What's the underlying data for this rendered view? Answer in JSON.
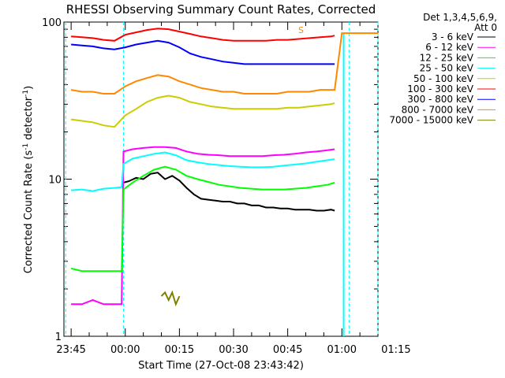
{
  "chart_data": {
    "type": "line",
    "title": "RHESSI Observing Summary Count Rates, Corrected",
    "xlabel": "Start Time (27-Oct-08 23:43:42)",
    "ylabel": "Corrected Count Rate (s",
    "ylabel_sup": "-1",
    "ylabel_mid": " detector",
    "ylabel_end": ")",
    "y_scale": "log",
    "ylim": [
      1,
      100
    ],
    "y_ticks": [
      {
        "value": 1,
        "label": "1"
      },
      {
        "value": 10,
        "label": "10"
      },
      {
        "value": 100,
        "label": "100"
      }
    ],
    "xlim_minutes": [
      -2,
      85
    ],
    "x_ticks": [
      {
        "minute": 0,
        "label": "23:45"
      },
      {
        "minute": 15,
        "label": "00:00"
      },
      {
        "minute": 30,
        "label": "00:15"
      },
      {
        "minute": 45,
        "label": "00:30"
      },
      {
        "minute": 60,
        "label": "00:45"
      },
      {
        "minute": 75,
        "label": "01:00"
      },
      {
        "minute": 90,
        "label": "01:15"
      }
    ],
    "legend_header_1": "Det 1,3,4,5,6,9,",
    "legend_header_2": "Att 0",
    "legend_position": "right",
    "marker_label": "S",
    "marker_minute": 73,
    "series": [
      {
        "name": "3 - 6 keV",
        "color": "#000000",
        "points": [
          [
            14.5,
            9.5
          ],
          [
            16,
            9.7
          ],
          [
            18,
            10.2
          ],
          [
            20,
            10.0
          ],
          [
            22,
            10.8
          ],
          [
            24,
            11.0
          ],
          [
            26,
            10.0
          ],
          [
            28,
            10.5
          ],
          [
            30,
            9.8
          ],
          [
            32,
            8.8
          ],
          [
            34,
            8.0
          ],
          [
            36,
            7.5
          ],
          [
            38,
            7.4
          ],
          [
            40,
            7.3
          ],
          [
            42,
            7.2
          ],
          [
            44,
            7.2
          ],
          [
            46,
            7.0
          ],
          [
            48,
            7.0
          ],
          [
            50,
            6.8
          ],
          [
            52,
            6.8
          ],
          [
            54,
            6.6
          ],
          [
            56,
            6.6
          ],
          [
            58,
            6.5
          ],
          [
            60,
            6.5
          ],
          [
            62,
            6.4
          ],
          [
            64,
            6.4
          ],
          [
            66,
            6.4
          ],
          [
            68,
            6.3
          ],
          [
            70,
            6.3
          ],
          [
            72,
            6.4
          ],
          [
            73,
            6.3
          ]
        ]
      },
      {
        "name": "6 - 12 keV",
        "color": "#ff00ff",
        "points": [
          [
            0,
            1.6
          ],
          [
            3,
            1.6
          ],
          [
            6,
            1.7
          ],
          [
            9,
            1.6
          ],
          [
            12,
            1.6
          ],
          [
            14,
            1.6
          ],
          [
            14.5,
            15.0
          ],
          [
            17,
            15.5
          ],
          [
            20,
            15.8
          ],
          [
            23,
            16.0
          ],
          [
            26,
            16.0
          ],
          [
            29,
            15.8
          ],
          [
            32,
            15.0
          ],
          [
            35,
            14.5
          ],
          [
            38,
            14.3
          ],
          [
            41,
            14.2
          ],
          [
            44,
            14.0
          ],
          [
            47,
            14.0
          ],
          [
            50,
            14.0
          ],
          [
            53,
            14.0
          ],
          [
            56,
            14.2
          ],
          [
            59,
            14.3
          ],
          [
            62,
            14.5
          ],
          [
            65,
            14.8
          ],
          [
            68,
            15.0
          ],
          [
            71,
            15.3
          ],
          [
            73,
            15.5
          ]
        ]
      },
      {
        "name": "12 - 25 keV",
        "color": "#00ff00",
        "points": [
          [
            0,
            2.7
          ],
          [
            3,
            2.6
          ],
          [
            6,
            2.6
          ],
          [
            9,
            2.6
          ],
          [
            12,
            2.6
          ],
          [
            14,
            2.6
          ],
          [
            14.5,
            8.6
          ],
          [
            17,
            9.5
          ],
          [
            20,
            10.5
          ],
          [
            23,
            11.5
          ],
          [
            26,
            12.0
          ],
          [
            29,
            11.5
          ],
          [
            32,
            10.5
          ],
          [
            35,
            10.0
          ],
          [
            38,
            9.6
          ],
          [
            41,
            9.2
          ],
          [
            44,
            9.0
          ],
          [
            47,
            8.8
          ],
          [
            50,
            8.7
          ],
          [
            53,
            8.6
          ],
          [
            56,
            8.6
          ],
          [
            59,
            8.6
          ],
          [
            62,
            8.7
          ],
          [
            65,
            8.8
          ],
          [
            68,
            9.0
          ],
          [
            71,
            9.2
          ],
          [
            73,
            9.5
          ]
        ]
      },
      {
        "name": "25 - 50 keV",
        "color": "#00ffff",
        "points": [
          [
            0,
            8.5
          ],
          [
            3,
            8.6
          ],
          [
            6,
            8.4
          ],
          [
            9,
            8.7
          ],
          [
            12,
            8.8
          ],
          [
            14,
            8.9
          ],
          [
            14.5,
            12.5
          ],
          [
            17,
            13.5
          ],
          [
            20,
            14.0
          ],
          [
            23,
            14.5
          ],
          [
            26,
            14.8
          ],
          [
            29,
            14.2
          ],
          [
            32,
            13.2
          ],
          [
            35,
            12.8
          ],
          [
            38,
            12.5
          ],
          [
            41,
            12.3
          ],
          [
            44,
            12.1
          ],
          [
            47,
            12.0
          ],
          [
            50,
            11.9
          ],
          [
            53,
            11.9
          ],
          [
            56,
            12.0
          ],
          [
            59,
            12.2
          ],
          [
            62,
            12.4
          ],
          [
            65,
            12.6
          ],
          [
            68,
            12.9
          ],
          [
            71,
            13.2
          ],
          [
            73,
            13.4
          ]
        ]
      },
      {
        "name": "50 - 100 keV",
        "color": "#cccc00",
        "points": [
          [
            0,
            24
          ],
          [
            3,
            23.5
          ],
          [
            6,
            23
          ],
          [
            9,
            22
          ],
          [
            12,
            21.5
          ],
          [
            15,
            25.5
          ],
          [
            18,
            28
          ],
          [
            21,
            31
          ],
          [
            24,
            33
          ],
          [
            27,
            34
          ],
          [
            30,
            33
          ],
          [
            33,
            31
          ],
          [
            36,
            30
          ],
          [
            39,
            29
          ],
          [
            42,
            28.5
          ],
          [
            45,
            28
          ],
          [
            48,
            28
          ],
          [
            51,
            28
          ],
          [
            54,
            28
          ],
          [
            57,
            28
          ],
          [
            60,
            28.5
          ],
          [
            63,
            28.5
          ],
          [
            66,
            29
          ],
          [
            69,
            29.5
          ],
          [
            72,
            30
          ],
          [
            73,
            30.5
          ]
        ]
      },
      {
        "name": "100 - 300 keV",
        "color": "#ff0000",
        "points": [
          [
            0,
            81
          ],
          [
            3,
            80
          ],
          [
            6,
            79
          ],
          [
            9,
            77
          ],
          [
            12,
            76
          ],
          [
            15,
            83
          ],
          [
            18,
            86
          ],
          [
            21,
            89
          ],
          [
            24,
            91
          ],
          [
            27,
            90
          ],
          [
            30,
            87
          ],
          [
            33,
            84
          ],
          [
            36,
            81
          ],
          [
            39,
            79
          ],
          [
            42,
            77
          ],
          [
            45,
            76
          ],
          [
            48,
            76
          ],
          [
            51,
            76
          ],
          [
            54,
            76
          ],
          [
            57,
            77
          ],
          [
            60,
            77
          ],
          [
            63,
            78
          ],
          [
            66,
            79
          ],
          [
            69,
            80
          ],
          [
            72,
            81
          ],
          [
            73,
            82
          ]
        ]
      },
      {
        "name": "300 - 800 keV",
        "color": "#0000ff",
        "points": [
          [
            0,
            72
          ],
          [
            3,
            71
          ],
          [
            6,
            70
          ],
          [
            9,
            68
          ],
          [
            12,
            67
          ],
          [
            15,
            69
          ],
          [
            18,
            72
          ],
          [
            21,
            74
          ],
          [
            24,
            76
          ],
          [
            27,
            74
          ],
          [
            30,
            69
          ],
          [
            33,
            63
          ],
          [
            36,
            60
          ],
          [
            39,
            58
          ],
          [
            42,
            56
          ],
          [
            45,
            55
          ],
          [
            48,
            54
          ],
          [
            51,
            54
          ],
          [
            54,
            54
          ],
          [
            57,
            54
          ],
          [
            60,
            54
          ],
          [
            63,
            54
          ],
          [
            66,
            54
          ],
          [
            69,
            54
          ],
          [
            72,
            54
          ],
          [
            73,
            54
          ]
        ]
      },
      {
        "name": "800 - 7000 keV",
        "color": "#ff8800",
        "points": [
          [
            0,
            37
          ],
          [
            3,
            36
          ],
          [
            6,
            36
          ],
          [
            9,
            35
          ],
          [
            12,
            35
          ],
          [
            15,
            39
          ],
          [
            18,
            42
          ],
          [
            21,
            44
          ],
          [
            24,
            46
          ],
          [
            27,
            45
          ],
          [
            30,
            42
          ],
          [
            33,
            40
          ],
          [
            36,
            38
          ],
          [
            39,
            37
          ],
          [
            42,
            36
          ],
          [
            45,
            36
          ],
          [
            48,
            35
          ],
          [
            51,
            35
          ],
          [
            54,
            35
          ],
          [
            57,
            35
          ],
          [
            60,
            36
          ],
          [
            63,
            36
          ],
          [
            66,
            36
          ],
          [
            69,
            37
          ],
          [
            72,
            37
          ],
          [
            73,
            37
          ],
          [
            75,
            85
          ],
          [
            85,
            85
          ]
        ]
      },
      {
        "name": "7000 - 15000 keV",
        "color": "#808000",
        "points": [
          [
            25,
            1.8
          ],
          [
            26,
            1.9
          ],
          [
            27,
            1.7
          ],
          [
            28,
            1.9
          ],
          [
            29,
            1.6
          ],
          [
            30,
            1.8
          ]
        ]
      }
    ]
  }
}
